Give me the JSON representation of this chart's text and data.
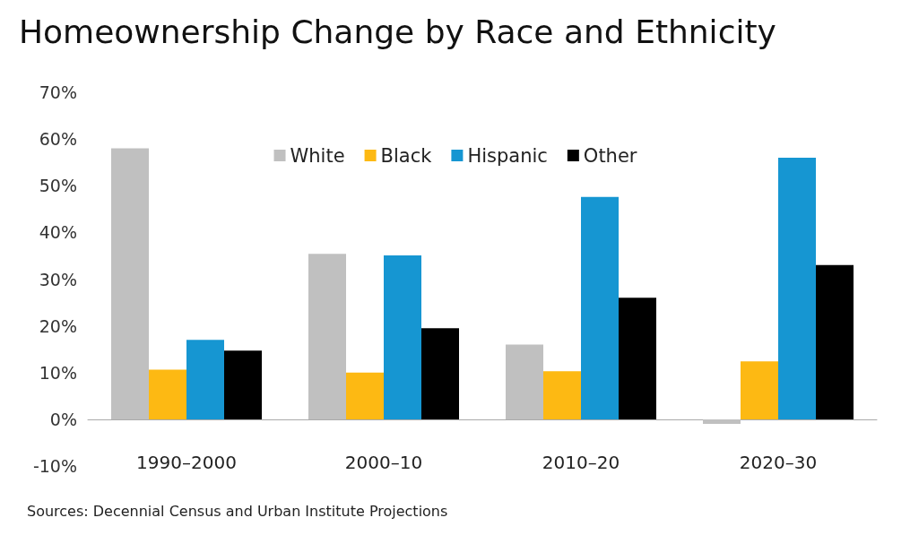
{
  "chart_data": {
    "type": "bar",
    "title": "Homeownership Change by Race and Ethnicity",
    "categories": [
      "1990–2000",
      "2000–10",
      "2010–20",
      "2020–30"
    ],
    "series": [
      {
        "name": "White",
        "color": "#c0c0c0",
        "values": [
          58,
          35.4,
          16,
          -1
        ]
      },
      {
        "name": "Black",
        "color": "#fdb913",
        "values": [
          10.6,
          10,
          10.3,
          12.4
        ]
      },
      {
        "name": "Hispanic",
        "color": "#1696d2",
        "values": [
          17,
          35.1,
          47.6,
          56
        ]
      },
      {
        "name": "Other",
        "color": "#000000",
        "values": [
          14.7,
          19.5,
          26,
          33
        ]
      }
    ],
    "ylim": [
      -10,
      70
    ],
    "yticks": [
      {
        "value": -10,
        "label": "-10%"
      },
      {
        "value": 0,
        "label": "0%"
      },
      {
        "value": 10,
        "label": "10%"
      },
      {
        "value": 20,
        "label": "20%"
      },
      {
        "value": 30,
        "label": "30%"
      },
      {
        "value": 40,
        "label": "40%"
      },
      {
        "value": 50,
        "label": "50%"
      },
      {
        "value": 60,
        "label": "60%"
      },
      {
        "value": 70,
        "label": "70%"
      }
    ],
    "grid": false,
    "legend": "top",
    "annotations": [
      "Sources: Decennial Census and Urban Institute Projections"
    ]
  }
}
